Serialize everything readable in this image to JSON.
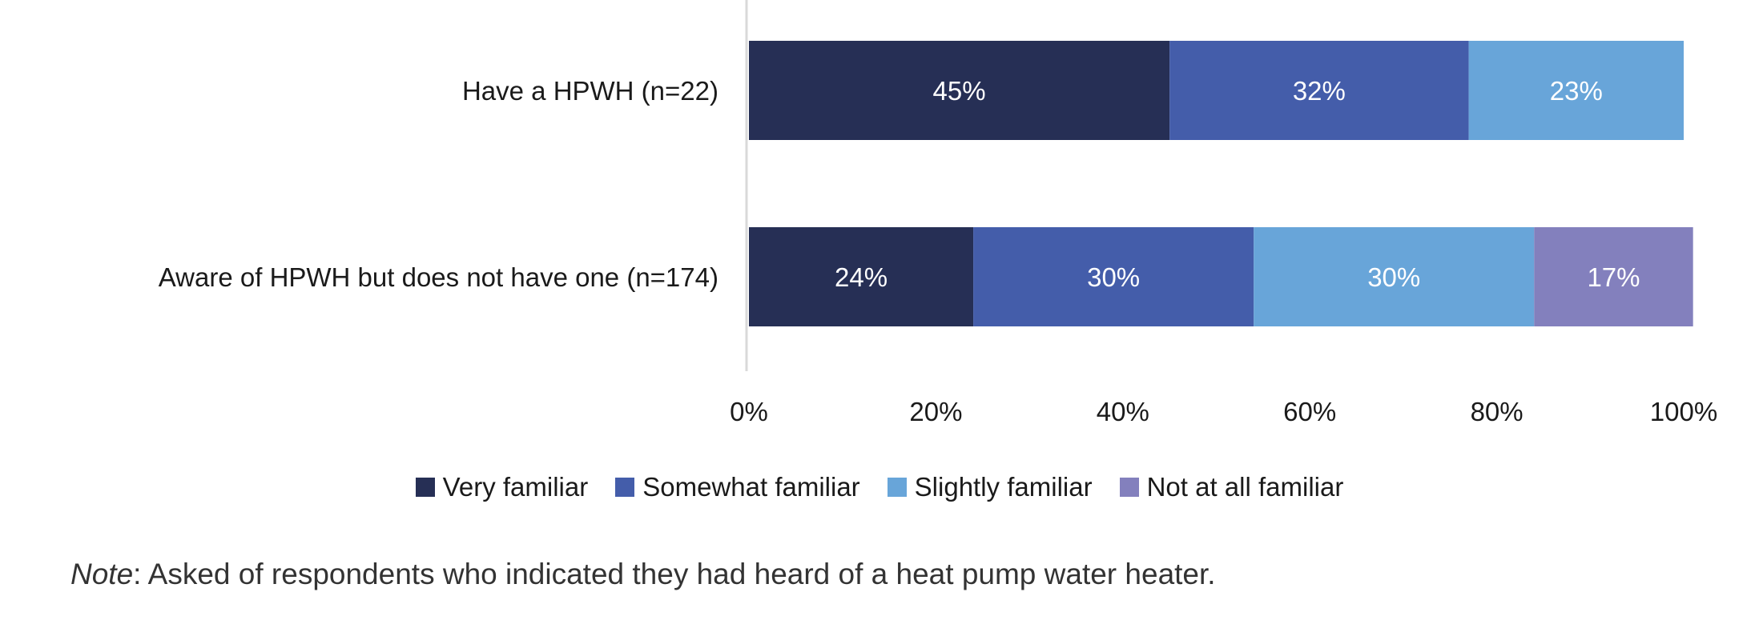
{
  "chart_data": {
    "type": "bar",
    "orientation": "horizontal",
    "stacked": true,
    "title": "",
    "xlabel": "",
    "ylabel": "",
    "categories": [
      "Have a HPWH (n=22)",
      "Aware of HPWH but does not have one (n=174)"
    ],
    "series": [
      {
        "name": "Very familiar",
        "values": [
          45,
          24
        ],
        "labels": [
          "45%",
          "24%"
        ],
        "color": "#262f55"
      },
      {
        "name": "Somewhat familiar",
        "values": [
          32,
          30
        ],
        "labels": [
          "32%",
          "30%"
        ],
        "color": "#445daa"
      },
      {
        "name": "Slightly familiar",
        "values": [
          23,
          30
        ],
        "labels": [
          "23%",
          "30%"
        ],
        "color": "#68a5d9"
      },
      {
        "name": "Not at all familiar",
        "values": [
          0,
          17
        ],
        "labels": [
          "",
          "17%"
        ],
        "color": "#8380bd"
      }
    ],
    "xlim": [
      0,
      100
    ],
    "x_ticks": [
      "0%",
      "20%",
      "40%",
      "60%",
      "80%",
      "100%"
    ],
    "legend_position": "bottom",
    "grid": false
  },
  "note": {
    "label": "Note",
    "text": ": Asked of respondents who indicated they had heard of a heat pump water heater."
  }
}
